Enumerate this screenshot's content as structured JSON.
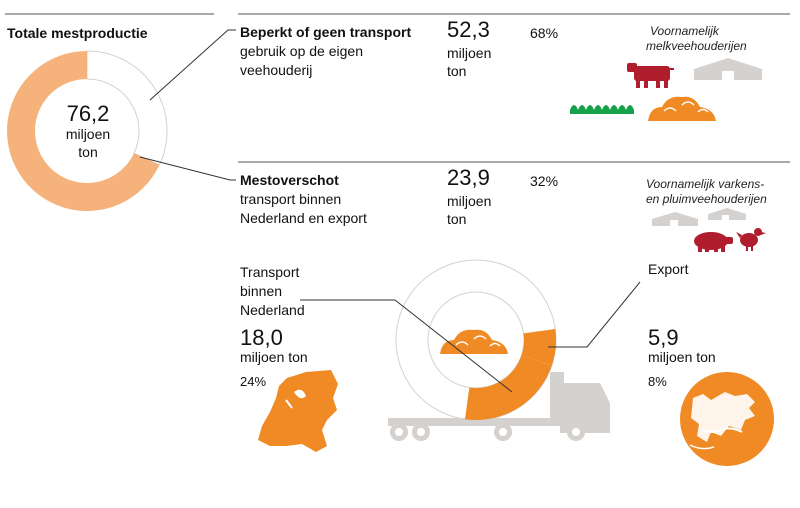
{
  "colors": {
    "orange": "#f08a24",
    "light_orange": "#f5b27a",
    "gray": "#d4d1ce",
    "dark_red": "#b01e2e",
    "green": "#15a04a",
    "line": "#333333"
  },
  "total": {
    "title": "Totale mestproductie",
    "value": "76,2",
    "unit_line1": "miljoen",
    "unit_line2": "ton"
  },
  "local": {
    "title": "Beperkt of geen transport",
    "desc_line1": "gebruik op de eigen",
    "desc_line2": "veehouderij",
    "value": "52,3",
    "unit_line1": "miljoen",
    "unit_line2": "ton",
    "percent": "68%",
    "note_line1": "Voornamelijk",
    "note_line2": "melkveehouderijen",
    "share": 0.68
  },
  "surplus": {
    "title": "Mestoverschot",
    "desc_line1": "transport binnen",
    "desc_line2": "Nederland en export",
    "value": "23,9",
    "unit_line1": "miljoen",
    "unit_line2": "ton",
    "percent": "32%",
    "note_line1": "Voornamelijk varkens-",
    "note_line2": "en pluimveehouderijen",
    "share": 0.32
  },
  "domestic": {
    "label_line1": "Transport",
    "label_line2": "binnen",
    "label_line3": "Nederland",
    "value": "18,0",
    "unit": "miljoen ton",
    "percent": "24%",
    "share": 0.24
  },
  "export": {
    "label": "Export",
    "value": "5,9",
    "unit": "miljoen ton",
    "percent": "8%",
    "share": 0.08
  },
  "icons": {
    "cow": "cow-icon",
    "barn": "barn-icon",
    "grass": "grass-icon",
    "manure": "manure-heap-icon",
    "pig": "pig-icon",
    "chicken": "chicken-icon",
    "truck": "truck-icon",
    "map_nl": "netherlands-map-icon",
    "globe": "europe-globe-icon"
  }
}
